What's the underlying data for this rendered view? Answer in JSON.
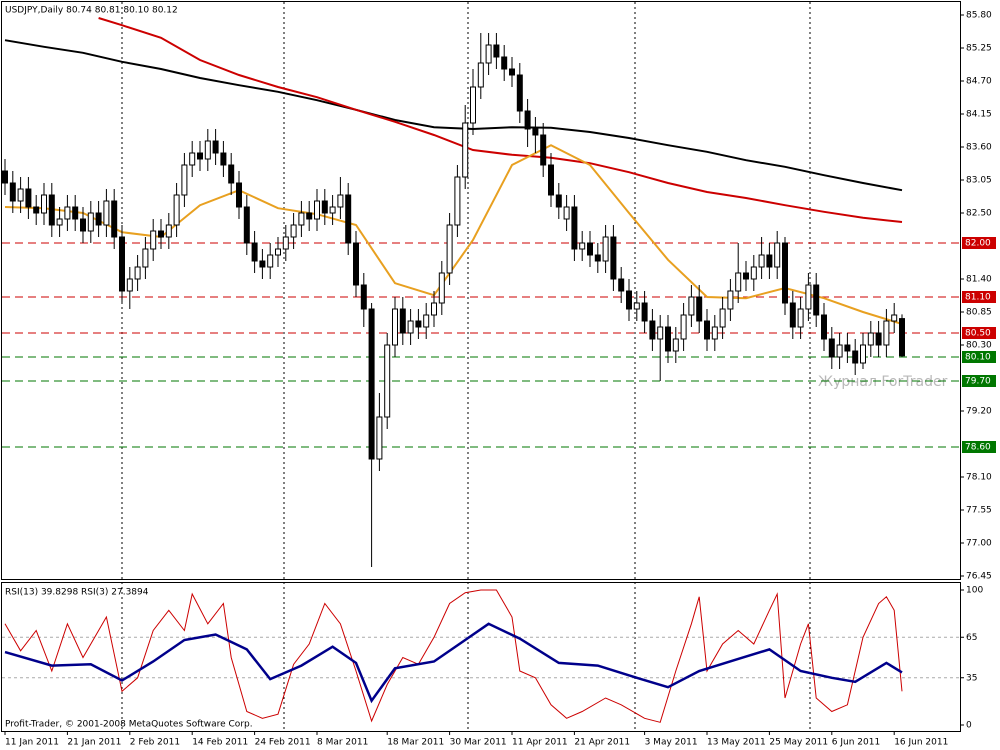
{
  "chart_data": [
    {
      "type": "candlestick",
      "title": "USDJPY,Daily  80.74 80.81 80.10 80.12",
      "watermark": "Журнал ForTrader",
      "footer": "Profit-Trader, © 2001-2008 MetaQuotes Software Corp.",
      "categories": [
        "11 Jan 2011",
        null,
        null,
        null,
        null,
        null,
        null,
        null,
        "21 Jan 2011",
        null,
        null,
        null,
        null,
        null,
        null,
        null,
        "2 Feb 2011",
        null,
        null,
        null,
        null,
        null,
        null,
        null,
        "14 Feb 2011",
        null,
        null,
        null,
        null,
        null,
        null,
        null,
        "24 Feb 2011",
        null,
        null,
        null,
        null,
        null,
        null,
        null,
        "8 Mar 2011",
        null,
        null,
        null,
        null,
        null,
        null,
        null,
        null,
        "18 Mar 2011",
        null,
        null,
        null,
        null,
        null,
        null,
        null,
        "30 Mar 2011",
        null,
        null,
        null,
        null,
        null,
        null,
        null,
        "11 Apr 2011",
        null,
        null,
        null,
        null,
        null,
        null,
        null,
        "21 Apr 2011",
        null,
        null,
        null,
        null,
        null,
        null,
        null,
        null,
        "3 May 2011",
        null,
        null,
        null,
        null,
        null,
        null,
        null,
        "13 May 2011",
        null,
        null,
        null,
        null,
        null,
        null,
        null,
        "25 May 2011",
        null,
        null,
        null,
        null,
        null,
        null,
        null,
        "6 Jun 2011",
        null,
        null,
        null,
        null,
        null,
        null,
        null,
        "16 Jun 2011",
        null
      ],
      "open": [
        83.2,
        83.0,
        82.7,
        82.9,
        82.6,
        82.5,
        82.8,
        82.3,
        82.4,
        82.6,
        82.4,
        82.2,
        82.5,
        82.3,
        82.7,
        82.1,
        81.2,
        81.4,
        81.6,
        81.9,
        82.2,
        82.1,
        82.3,
        82.8,
        83.3,
        83.5,
        83.4,
        83.7,
        83.5,
        83.3,
        83.0,
        82.6,
        82.0,
        81.7,
        81.6,
        81.8,
        81.9,
        82.1,
        82.3,
        82.5,
        82.4,
        82.7,
        82.5,
        82.6,
        82.8,
        82.0,
        81.3,
        80.9,
        78.4,
        79.1,
        80.3,
        80.9,
        80.5,
        80.7,
        80.6,
        80.8,
        81.0,
        81.5,
        82.3,
        83.1,
        84.0,
        84.6,
        85.0,
        85.3,
        85.1,
        84.9,
        84.8,
        84.2,
        83.9,
        83.8,
        83.3,
        82.8,
        82.4,
        82.6,
        81.9,
        82.0,
        81.8,
        81.7,
        82.1,
        81.4,
        81.2,
        80.9,
        81.0,
        80.7,
        80.4,
        80.6,
        80.2,
        80.4,
        80.8,
        81.1,
        80.7,
        80.4,
        80.6,
        80.9,
        81.2,
        81.5,
        81.4,
        81.6,
        81.8,
        81.6,
        82.0,
        81.0,
        80.6,
        80.9,
        81.3,
        80.8,
        80.4,
        80.1,
        80.3,
        80.2,
        80.0,
        80.3,
        80.5,
        80.3,
        80.7,
        80.74
      ],
      "high": [
        83.4,
        83.2,
        83.1,
        83.1,
        82.8,
        83.0,
        83.0,
        82.6,
        82.8,
        82.8,
        82.6,
        82.7,
        82.7,
        82.9,
        82.9,
        82.3,
        81.6,
        81.8,
        82.1,
        82.4,
        82.4,
        82.5,
        83.0,
        83.5,
        83.7,
        83.7,
        83.9,
        83.9,
        83.7,
        83.5,
        83.2,
        82.8,
        82.2,
        81.9,
        82.0,
        82.1,
        82.3,
        82.5,
        82.7,
        82.7,
        82.9,
        82.9,
        82.8,
        83.1,
        83.0,
        82.2,
        81.5,
        81.0,
        79.5,
        80.5,
        81.1,
        81.1,
        80.9,
        80.9,
        81.0,
        81.2,
        81.7,
        82.5,
        83.3,
        84.3,
        84.9,
        85.5,
        85.5,
        85.5,
        85.3,
        85.1,
        85.0,
        84.4,
        84.1,
        84.0,
        83.5,
        83.0,
        82.8,
        82.8,
        82.2,
        82.2,
        82.0,
        82.3,
        82.3,
        81.6,
        81.4,
        81.2,
        81.2,
        80.9,
        80.8,
        80.8,
        80.6,
        81.0,
        81.3,
        81.3,
        80.9,
        80.8,
        81.1,
        81.4,
        82.0,
        81.7,
        81.8,
        82.1,
        82.0,
        82.2,
        82.1,
        81.2,
        81.1,
        81.5,
        81.5,
        81.0,
        80.6,
        80.5,
        80.5,
        80.4,
        80.5,
        80.7,
        80.7,
        80.9,
        81.0,
        80.81
      ],
      "low": [
        82.8,
        82.5,
        82.5,
        82.4,
        82.3,
        82.3,
        82.1,
        82.1,
        82.2,
        82.2,
        82.0,
        82.0,
        82.1,
        82.1,
        81.9,
        81.0,
        80.9,
        81.2,
        81.4,
        81.7,
        81.9,
        81.9,
        82.1,
        82.6,
        83.1,
        83.2,
        83.2,
        83.3,
        83.1,
        82.8,
        82.4,
        81.8,
        81.5,
        81.4,
        81.4,
        81.6,
        81.7,
        81.9,
        82.1,
        82.2,
        82.2,
        82.3,
        82.3,
        82.4,
        81.8,
        81.1,
        80.6,
        76.6,
        78.2,
        78.9,
        80.1,
        80.3,
        80.3,
        80.4,
        80.4,
        80.6,
        80.8,
        81.3,
        82.1,
        82.9,
        83.8,
        84.4,
        84.8,
        84.9,
        84.7,
        84.6,
        84.0,
        83.6,
        83.5,
        83.1,
        82.6,
        82.4,
        82.2,
        81.7,
        81.7,
        81.6,
        81.5,
        81.5,
        81.2,
        81.0,
        80.7,
        80.7,
        80.5,
        80.2,
        79.7,
        80.0,
        80.0,
        80.2,
        80.6,
        80.5,
        80.2,
        80.2,
        80.4,
        80.7,
        81.0,
        81.2,
        81.2,
        81.4,
        81.4,
        81.4,
        80.8,
        80.4,
        80.4,
        80.7,
        80.6,
        80.2,
        79.9,
        79.9,
        80.0,
        79.8,
        79.9,
        80.1,
        80.1,
        80.1,
        80.5,
        80.1
      ],
      "close": [
        83.0,
        82.7,
        82.9,
        82.6,
        82.5,
        82.8,
        82.3,
        82.4,
        82.6,
        82.4,
        82.2,
        82.5,
        82.3,
        82.7,
        82.1,
        81.2,
        81.4,
        81.6,
        81.9,
        82.2,
        82.1,
        82.3,
        82.8,
        83.3,
        83.5,
        83.4,
        83.7,
        83.5,
        83.3,
        83.0,
        82.6,
        82.0,
        81.7,
        81.6,
        81.8,
        81.9,
        82.1,
        82.3,
        82.5,
        82.4,
        82.7,
        82.5,
        82.6,
        82.8,
        82.0,
        81.3,
        80.9,
        78.4,
        79.1,
        80.3,
        80.9,
        80.5,
        80.7,
        80.6,
        80.8,
        81.0,
        81.5,
        82.3,
        83.1,
        84.0,
        84.6,
        85.0,
        85.3,
        85.1,
        84.9,
        84.8,
        84.2,
        83.9,
        83.8,
        83.3,
        82.8,
        82.6,
        82.6,
        81.9,
        82.0,
        81.8,
        81.7,
        82.1,
        81.4,
        81.2,
        80.9,
        81.0,
        80.7,
        80.4,
        80.6,
        80.2,
        80.4,
        80.8,
        81.1,
        80.7,
        80.4,
        80.6,
        80.9,
        81.2,
        81.5,
        81.4,
        81.6,
        81.8,
        81.6,
        82.0,
        81.0,
        80.6,
        80.9,
        81.3,
        80.8,
        80.4,
        80.1,
        80.3,
        80.2,
        80.0,
        80.3,
        80.5,
        80.3,
        80.7,
        80.8,
        80.12
      ],
      "up_color": "#ffffff",
      "down_color": "#000000",
      "lines": [
        {
          "color": "#000000",
          "x": [
            0,
            5,
            10,
            15,
            20,
            25,
            30,
            35,
            40,
            45,
            50,
            55,
            60,
            65,
            70,
            75,
            80,
            85,
            90,
            95,
            100,
            105,
            110,
            115
          ],
          "values": [
            85.38,
            85.27,
            85.17,
            85.02,
            84.9,
            84.75,
            84.63,
            84.52,
            84.38,
            84.22,
            84.05,
            83.93,
            83.9,
            83.93,
            83.92,
            83.85,
            83.75,
            83.63,
            83.52,
            83.38,
            83.27,
            83.13,
            83.0,
            82.88
          ]
        },
        {
          "color": "#cc0000",
          "x": [
            12,
            15,
            20,
            25,
            30,
            35,
            40,
            45,
            50,
            55,
            60,
            65,
            70,
            75,
            80,
            85,
            90,
            95,
            100,
            105,
            110,
            115
          ],
          "values": [
            85.75,
            85.63,
            85.42,
            85.05,
            84.8,
            84.6,
            84.43,
            84.22,
            84.02,
            83.8,
            83.55,
            83.47,
            83.42,
            83.33,
            83.18,
            83.0,
            82.85,
            82.75,
            82.63,
            82.52,
            82.42,
            82.35
          ]
        },
        {
          "color": "#e8a020",
          "x": [
            0,
            5,
            10,
            15,
            20,
            25,
            30,
            35,
            40,
            45,
            50,
            55,
            60,
            65,
            70,
            75,
            80,
            85,
            90,
            95,
            100,
            105,
            110,
            115
          ],
          "values": [
            82.6,
            82.58,
            82.5,
            82.18,
            82.1,
            82.63,
            82.88,
            82.58,
            82.48,
            82.3,
            81.33,
            81.13,
            82.05,
            83.3,
            83.63,
            83.3,
            82.5,
            81.72,
            81.1,
            81.08,
            81.25,
            81.08,
            80.85,
            80.65
          ]
        }
      ],
      "levels": [
        {
          "value": 82,
          "label": "82.00",
          "color": "#cc0000"
        },
        {
          "value": 81.1,
          "label": "81.10",
          "color": "#cc0000"
        },
        {
          "value": 80.5,
          "label": "80.50",
          "color": "#cc0000"
        },
        {
          "value": 80.1,
          "label": "80.10",
          "color": "#007700"
        },
        {
          "value": 79.7,
          "label": "79.70",
          "color": "#007700"
        },
        {
          "value": 78.6,
          "label": "78.60",
          "color": "#007700"
        }
      ],
      "ylim": [
        76.45,
        85.8
      ],
      "yticks": [
        76.45,
        {
          "value": 77,
          "label": "77.00"
        },
        77.55,
        {
          "value": 78.1,
          "label": "78.10"
        },
        {
          "value": 79.2,
          "label": "79.20"
        },
        {
          "value": 80.3,
          "label": "80.30"
        },
        80.85,
        {
          "value": 81.4,
          "label": "81.40"
        },
        {
          "value": 82.5,
          "label": "82.50"
        },
        83.05,
        {
          "value": 83.6,
          "label": "83.60"
        },
        84.15,
        {
          "value": 84.7,
          "label": "84.70"
        },
        85.25,
        {
          "value": 85.8,
          "label": "85.80"
        }
      ]
    },
    {
      "type": "line",
      "title": "RSI(13) 39.8298  RSI(3) 27.3894",
      "ylim": [
        0,
        100
      ],
      "yticks": [
        0,
        35,
        65,
        100
      ],
      "series": [
        {
          "color": "#cc0000",
          "x": [
            0,
            2,
            4,
            6,
            8,
            10,
            12,
            13,
            15,
            17,
            19,
            21,
            23,
            24,
            26,
            28,
            29,
            31,
            33,
            35,
            37,
            39,
            41,
            43,
            45,
            47,
            49,
            51,
            53,
            55,
            57,
            59,
            61,
            63,
            65,
            66,
            68,
            70,
            72,
            74,
            77,
            79,
            82,
            84,
            86,
            88,
            89,
            90,
            92,
            94,
            96,
            98,
            99,
            100,
            102,
            103,
            104,
            106,
            108,
            110,
            112,
            113,
            114,
            115
          ],
          "values": [
            75,
            55,
            70,
            40,
            75,
            50,
            70,
            80,
            25,
            35,
            70,
            85,
            70,
            97,
            75,
            90,
            50,
            10,
            5,
            8,
            45,
            60,
            90,
            75,
            40,
            3,
            30,
            50,
            45,
            65,
            90,
            98,
            100,
            100,
            80,
            40,
            35,
            15,
            5,
            10,
            20,
            15,
            5,
            2,
            40,
            75,
            95,
            40,
            60,
            70,
            60,
            85,
            97,
            20,
            60,
            75,
            20,
            10,
            15,
            65,
            90,
            95,
            85,
            25
          ]
        },
        {
          "color": "#00008b",
          "x": [
            0,
            6,
            11,
            15,
            19,
            23,
            27,
            31,
            34,
            38,
            42,
            45,
            47,
            50,
            55,
            59,
            62,
            66,
            71,
            76,
            81,
            85,
            89,
            94,
            98,
            102,
            106,
            109,
            113,
            115
          ],
          "values": [
            54,
            44,
            45,
            33,
            47,
            63,
            67,
            56,
            34,
            44,
            58,
            46,
            18,
            42,
            47,
            63,
            75,
            64,
            46,
            44,
            35,
            28,
            40,
            49,
            56,
            40,
            35,
            32,
            46,
            39
          ]
        }
      ]
    }
  ]
}
